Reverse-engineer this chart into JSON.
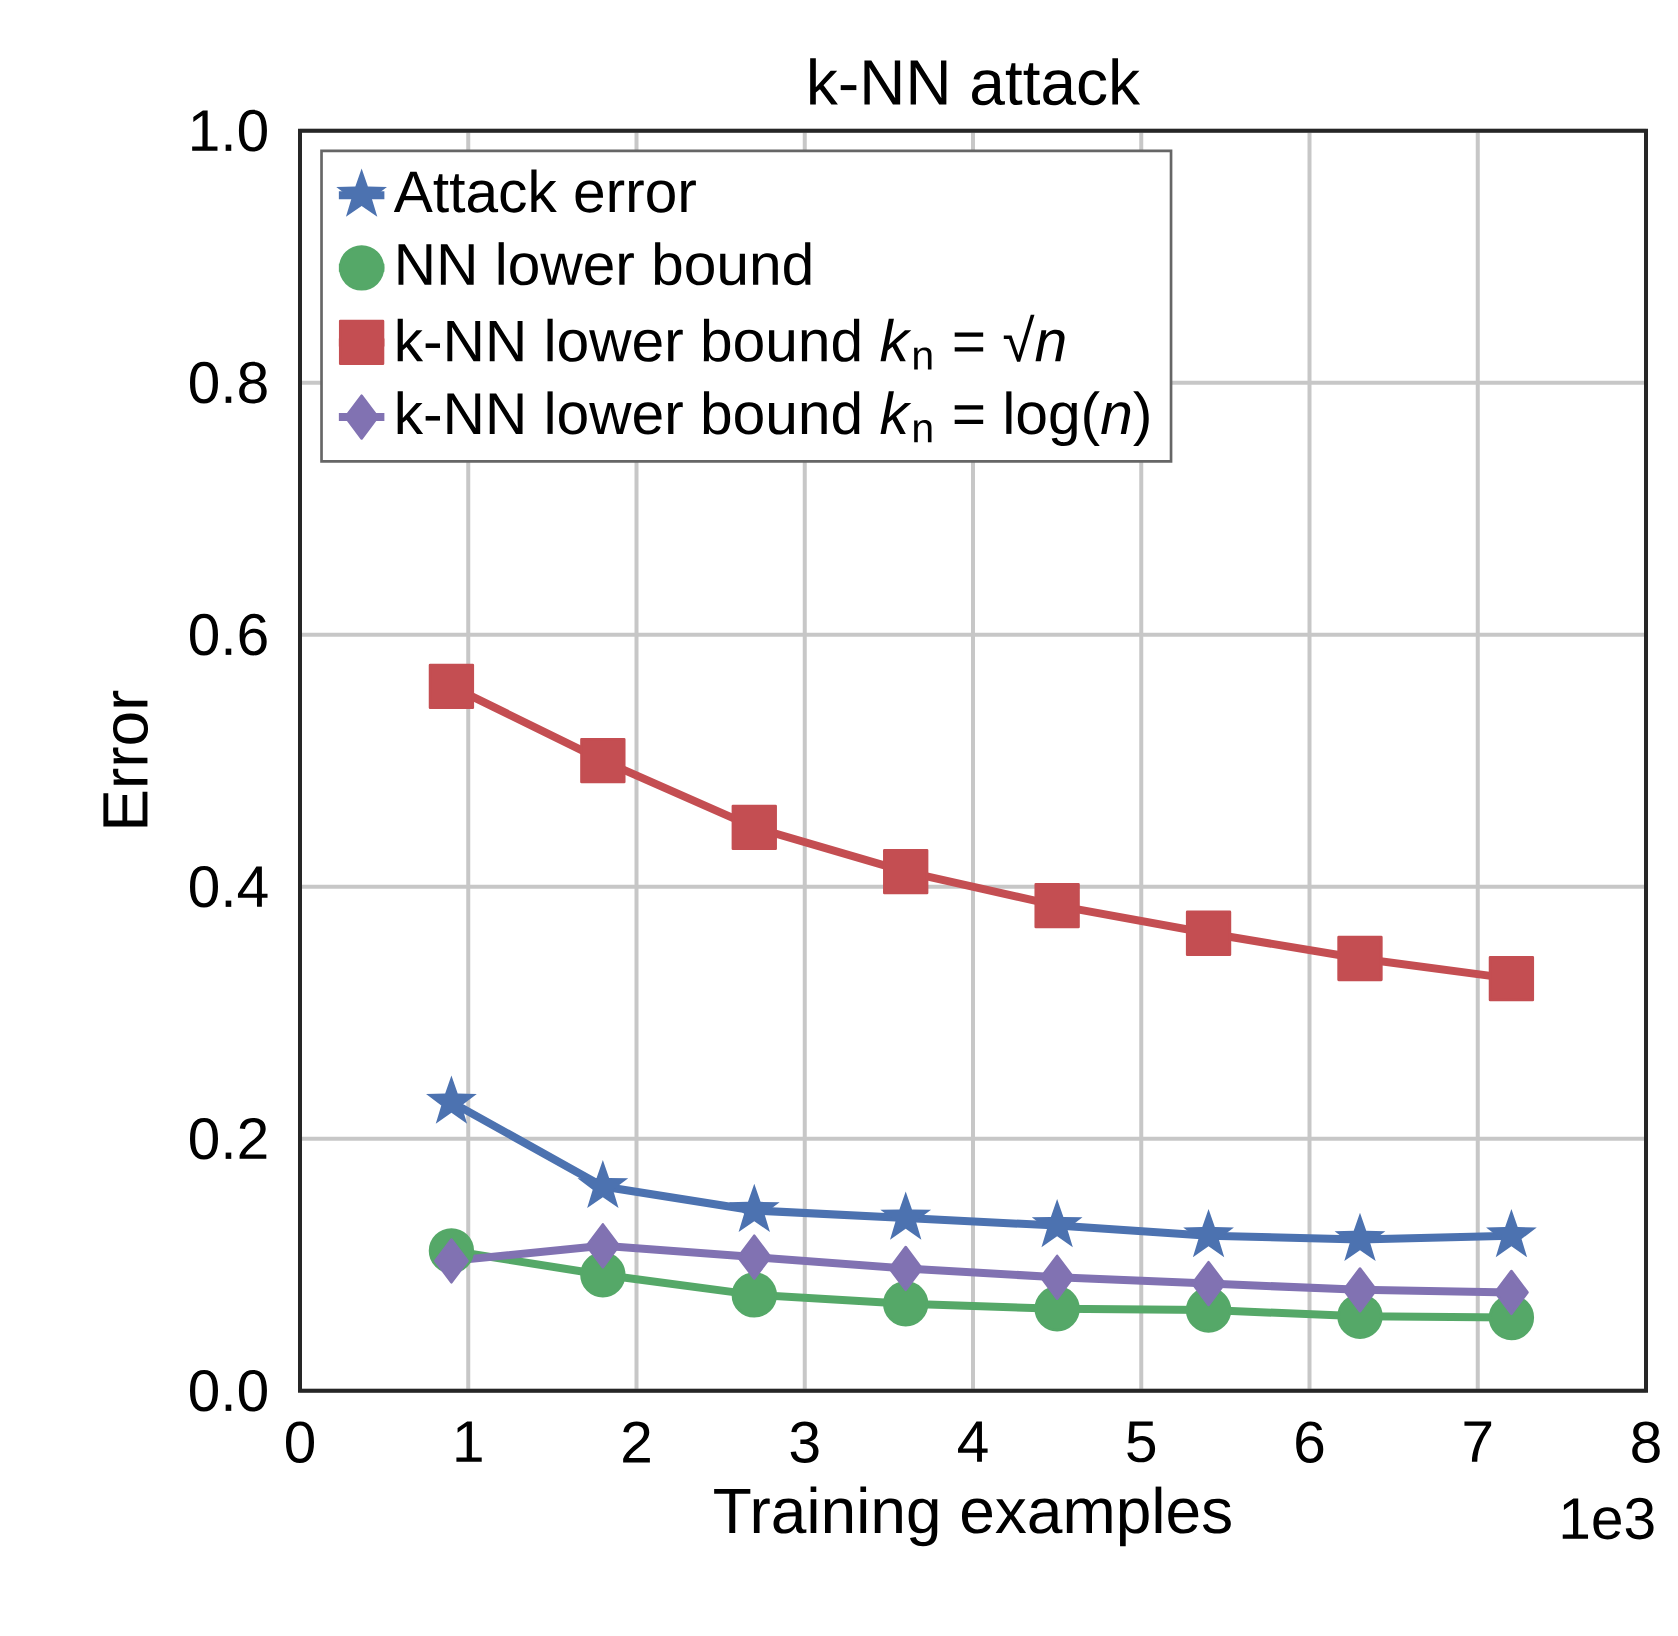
{
  "chart_data": {
    "type": "line",
    "title": "k-NN attack",
    "xlabel": "Training examples",
    "ylabel": "Error",
    "annotations": [
      "1e3"
    ],
    "x": [
      0.9,
      1.8,
      2.7,
      3.6,
      4.5,
      5.4,
      6.3,
      7.2
    ],
    "xlim": [
      0,
      8
    ],
    "xticks": [
      0,
      1,
      2,
      3,
      4,
      5,
      6,
      7,
      8
    ],
    "ylim": [
      0,
      1
    ],
    "yticks": [
      {
        "value": 0,
        "label": "0.0"
      },
      0.2,
      0.4,
      0.6,
      0.8,
      {
        "value": 1,
        "label": "1.0"
      }
    ],
    "grid": true,
    "legend": "top left",
    "line_style": "solid",
    "series": [
      {
        "name": "Attack error",
        "color": "#4c72b0",
        "marker": "star",
        "values": [
          0.229,
          0.162,
          0.143,
          0.137,
          0.131,
          0.123,
          0.12,
          0.123
        ]
      },
      {
        "name": "NN lower bound",
        "color": "#55a868",
        "marker": "circle",
        "values": [
          0.111,
          0.092,
          0.076,
          0.069,
          0.065,
          0.064,
          0.059,
          0.058
        ]
      },
      {
        "name": "k-NN lower bound *k*$_{n}$ = √*n*",
        "color": "#c44e52",
        "marker": "square",
        "values": [
          0.559,
          0.5,
          0.447,
          0.412,
          0.385,
          0.363,
          0.343,
          0.327
        ]
      },
      {
        "name": "k-NN lower bound *k*$_{n}$ = log(*n*)",
        "color": "#8172b2",
        "marker": "diamond",
        "values": [
          0.103,
          0.115,
          0.106,
          0.097,
          0.09,
          0.085,
          0.08,
          0.078
        ]
      }
    ]
  }
}
